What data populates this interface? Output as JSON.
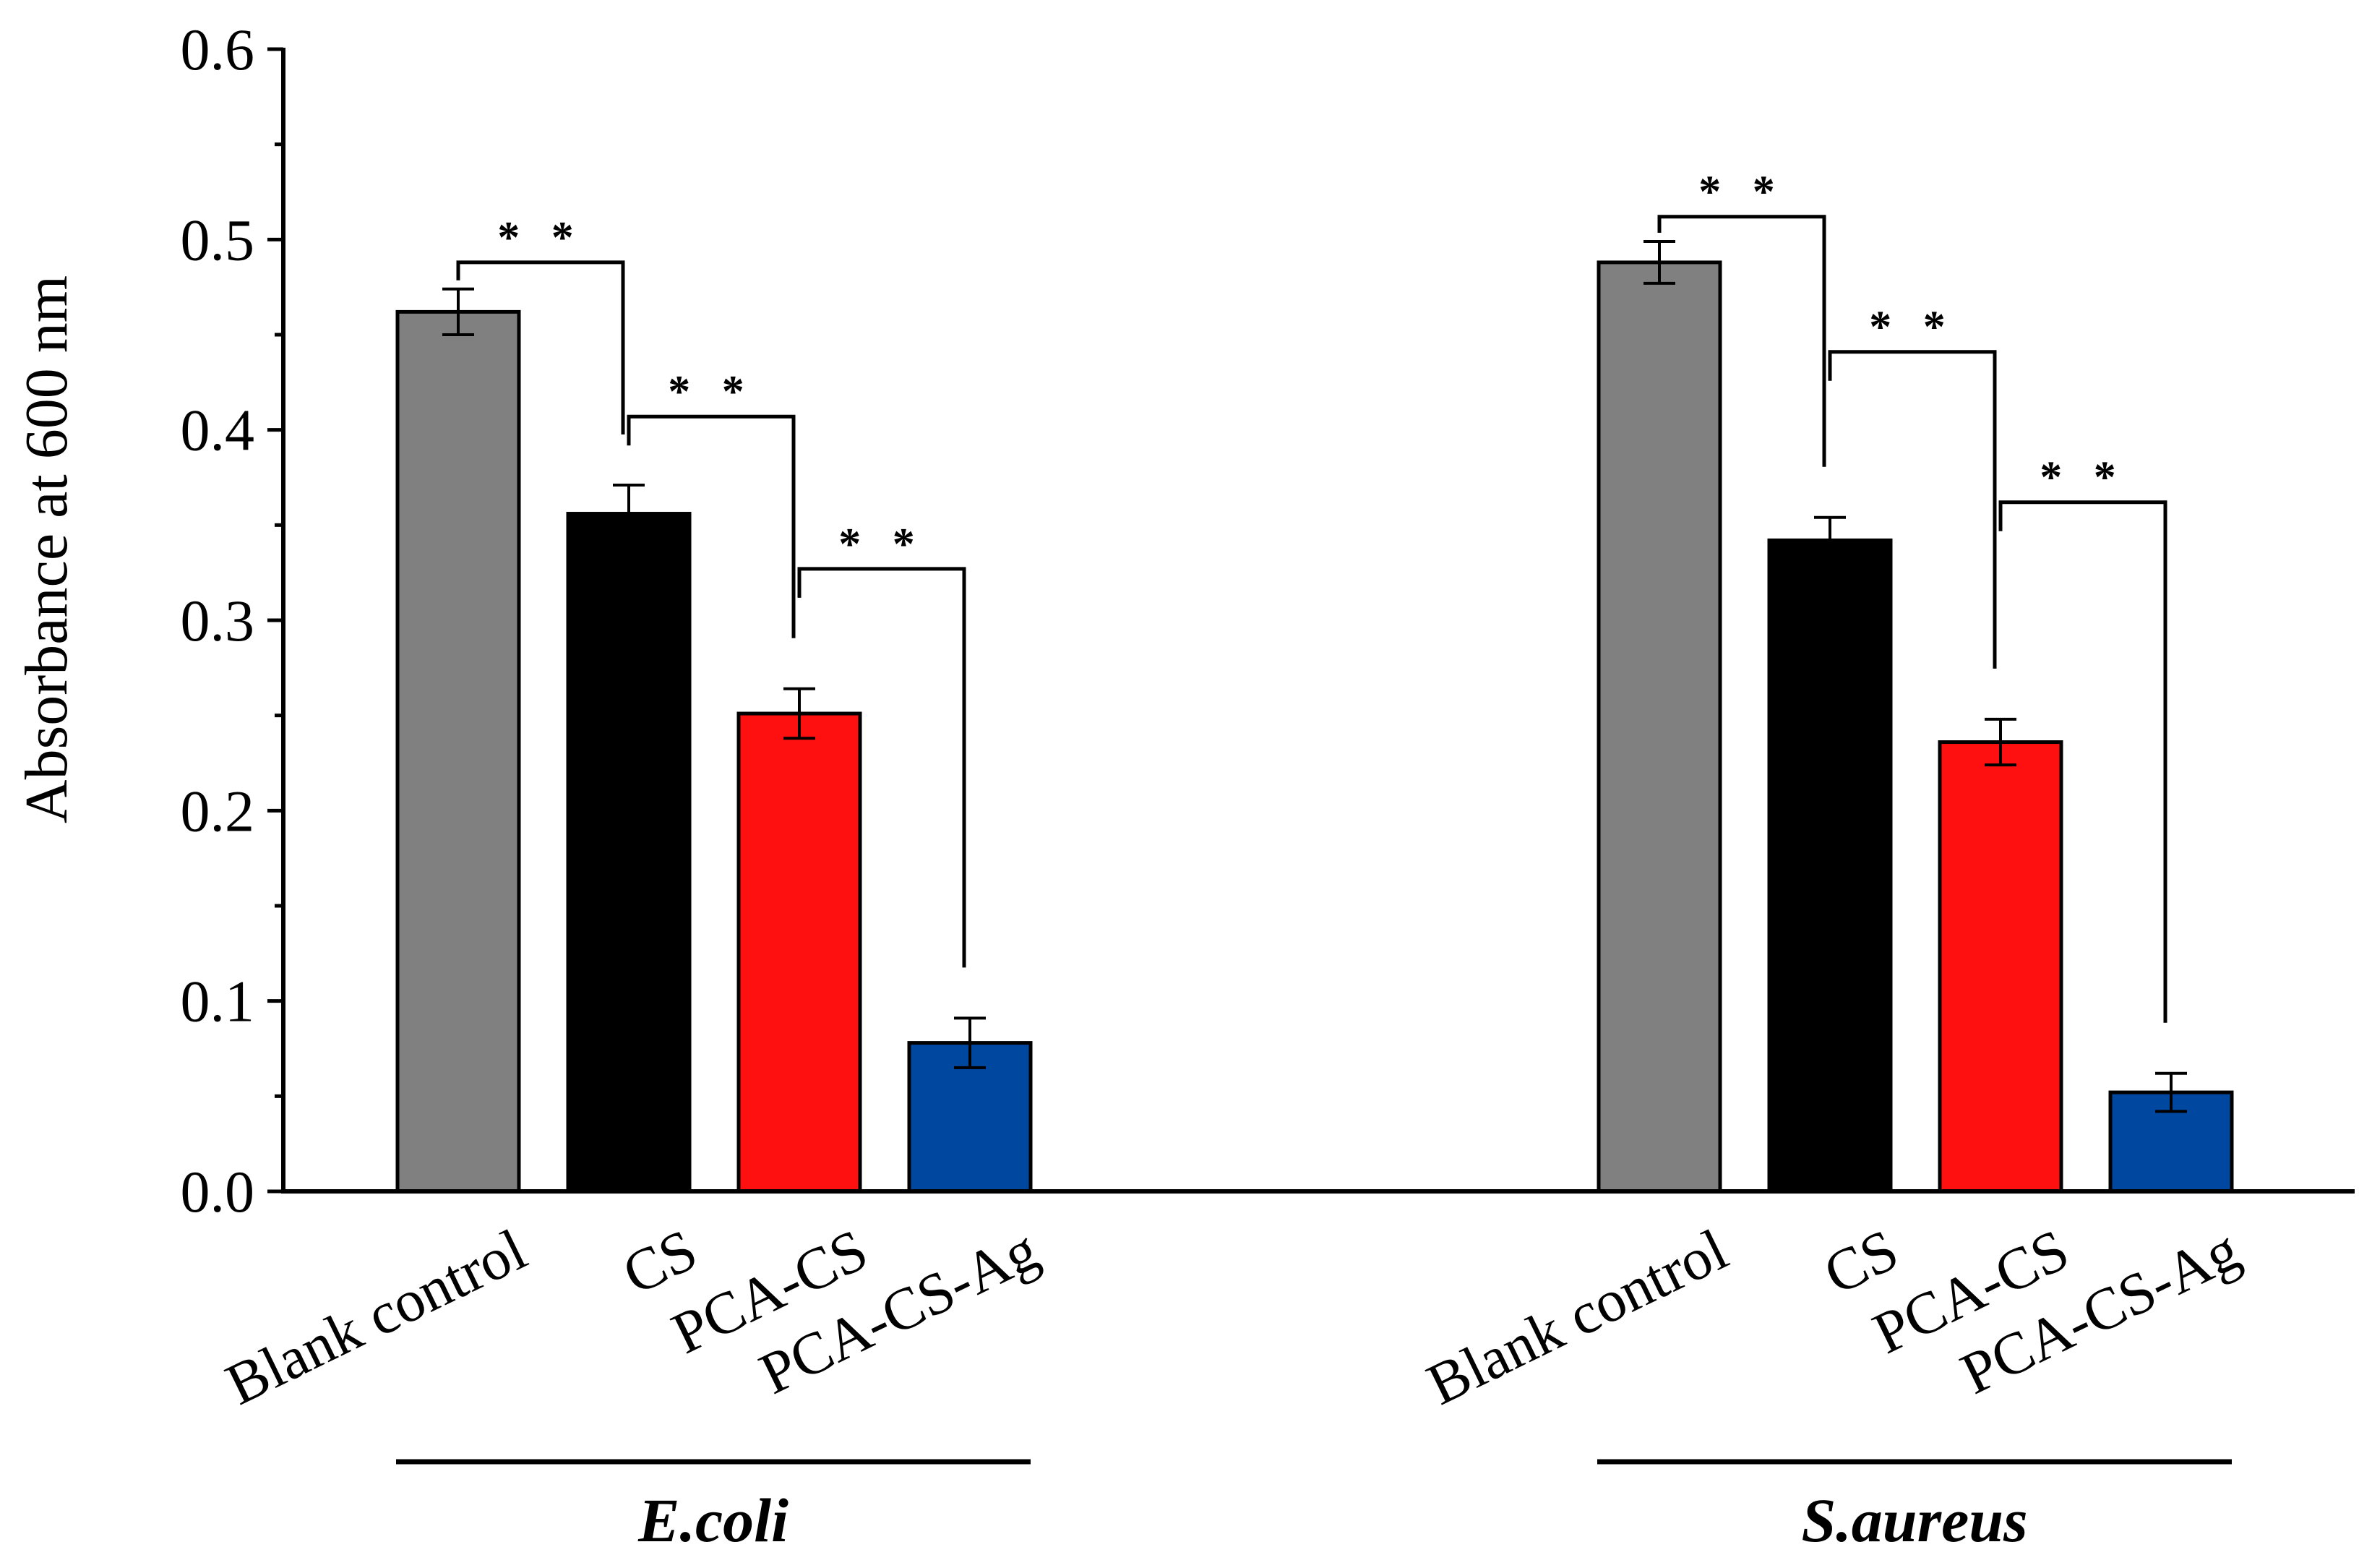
{
  "chart_data": {
    "type": "bar",
    "ylabel": "Absorbance at 600 nm",
    "ylim": [
      0,
      0.6
    ],
    "yticks": [
      "0.0",
      "0.1",
      "0.2",
      "0.3",
      "0.4",
      "0.5",
      "0.6"
    ],
    "groups": [
      {
        "name": "E.coli",
        "bars": [
          {
            "label": "Blank control",
            "value": 0.462,
            "error": 0.012,
            "color": "#808080"
          },
          {
            "label": "CS",
            "value": 0.356,
            "error": 0.015,
            "color": "#000000"
          },
          {
            "label": "PCA-CS",
            "value": 0.251,
            "error": 0.013,
            "color": "#ff1010"
          },
          {
            "label": "PCA-CS-Ag",
            "value": 0.078,
            "error": 0.013,
            "color": "#0047a0"
          }
        ],
        "significance": [
          {
            "from": 0,
            "to": 1,
            "label": "* *",
            "bracket_y": 0.488
          },
          {
            "from": 1,
            "to": 2,
            "label": "* *",
            "bracket_y": 0.407
          },
          {
            "from": 2,
            "to": 3,
            "label": "* *",
            "bracket_y": 0.327
          }
        ]
      },
      {
        "name": "S.aureus",
        "bars": [
          {
            "label": "Blank control",
            "value": 0.488,
            "error": 0.011,
            "color": "#808080"
          },
          {
            "label": "CS",
            "value": 0.342,
            "error": 0.012,
            "color": "#000000"
          },
          {
            "label": "PCA-CS",
            "value": 0.236,
            "error": 0.012,
            "color": "#ff1010"
          },
          {
            "label": "PCA-CS-Ag",
            "value": 0.052,
            "error": 0.01,
            "color": "#0047a0"
          }
        ],
        "significance": [
          {
            "from": 0,
            "to": 1,
            "label": "* *",
            "bracket_y": 0.512
          },
          {
            "from": 1,
            "to": 2,
            "label": "* *",
            "bracket_y": 0.441
          },
          {
            "from": 2,
            "to": 3,
            "label": "* *",
            "bracket_y": 0.362
          }
        ]
      }
    ]
  }
}
